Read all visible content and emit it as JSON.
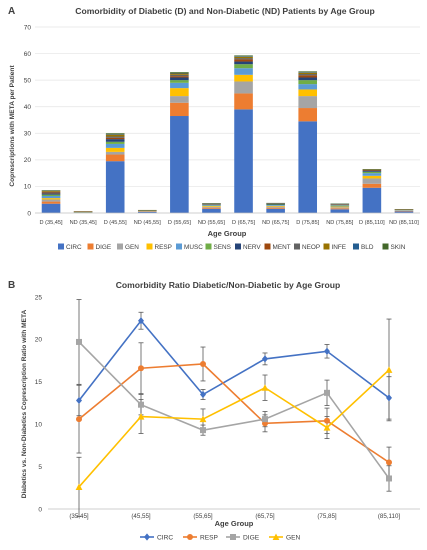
{
  "panel_a": {
    "letter": "A",
    "chart_data": {
      "type": "bar",
      "stacked": true,
      "title": "Comorbidity of Diabetic (D) and Non-Diabetic (ND) Patients by Age Group",
      "xlabel": "Age Group",
      "ylabel": "Coprescriptions with META per Patient",
      "ylim": [
        0,
        70
      ],
      "yticks": [
        "0",
        "10",
        "20",
        "30",
        "40",
        "50",
        "60",
        "70"
      ],
      "grid": true,
      "legend_position": "bottom",
      "categories": [
        "D (35,45]",
        "ND (35,45]",
        "D (45,55]",
        "ND (45,55]",
        "D (55,65]",
        "ND (55,65]",
        "D (65,75]",
        "ND (65,75]",
        "D (75,85]",
        "ND (75,85]",
        "D (85,110]",
        "ND (85,110]"
      ],
      "series": [
        {
          "name": "CIRC",
          "color": "#4472c4",
          "values": [
            3.5,
            0.2,
            19.5,
            0.5,
            36.5,
            1.6,
            39,
            1.6,
            34.5,
            1.4,
            9.5,
            0.6
          ]
        },
        {
          "name": "DIGE",
          "color": "#ed7d31",
          "values": [
            0.8,
            0.05,
            2.5,
            0.1,
            5,
            0.4,
            6,
            0.4,
            5,
            0.35,
            1.5,
            0.15
          ]
        },
        {
          "name": "GEN",
          "color": "#a5a5a5",
          "values": [
            0.8,
            0.05,
            1,
            0.1,
            2.5,
            0.3,
            4.5,
            0.4,
            4.5,
            0.4,
            2,
            0.15
          ]
        },
        {
          "name": "RESP",
          "color": "#ffc000",
          "values": [
            0.5,
            0.05,
            1.5,
            0.1,
            3,
            0.3,
            2.5,
            0.3,
            2.5,
            0.3,
            1,
            0.1
          ]
        },
        {
          "name": "MUSC",
          "color": "#5b9bd5",
          "values": [
            0.8,
            0.05,
            1.5,
            0.1,
            2,
            0.3,
            2.5,
            0.3,
            2,
            0.3,
            1,
            0.15
          ]
        },
        {
          "name": "SENS",
          "color": "#70ad47",
          "values": [
            0.5,
            0.05,
            0.8,
            0.05,
            1,
            0.2,
            1.5,
            0.2,
            1.5,
            0.2,
            0.5,
            0.1
          ]
        },
        {
          "name": "NERV",
          "color": "#264478",
          "values": [
            0.5,
            0.05,
            1,
            0.05,
            1,
            0.2,
            1,
            0.2,
            1,
            0.2,
            0.3,
            0.1
          ]
        },
        {
          "name": "MENT",
          "color": "#9e480e",
          "values": [
            0.3,
            0.05,
            0.5,
            0.05,
            0.5,
            0.1,
            0.8,
            0.1,
            0.8,
            0.1,
            0.2,
            0.05
          ]
        },
        {
          "name": "NEOP",
          "color": "#636363",
          "values": [
            0.3,
            0.05,
            0.5,
            0.05,
            0.5,
            0.1,
            0.5,
            0.1,
            0.5,
            0.1,
            0.2,
            0.05
          ]
        },
        {
          "name": "INFE",
          "color": "#997300",
          "values": [
            0.4,
            0.05,
            0.7,
            0.05,
            0.5,
            0.1,
            0.5,
            0.1,
            0.5,
            0.1,
            0.2,
            0.05
          ]
        },
        {
          "name": "BLD",
          "color": "#255e91",
          "values": [
            0.1,
            0.0,
            0.2,
            0.0,
            0.2,
            0.05,
            0.2,
            0.05,
            0.2,
            0.05,
            0.05,
            0.0
          ]
        },
        {
          "name": "SKIN",
          "color": "#43682b",
          "values": [
            0.1,
            0.0,
            0.3,
            0.0,
            0.3,
            0.05,
            0.3,
            0.05,
            0.3,
            0.05,
            0.05,
            0.0
          ]
        }
      ]
    }
  },
  "panel_b": {
    "letter": "B",
    "chart_data": {
      "type": "line",
      "title": "Comorbidity Ratio Diabetic/Non-Diabetic by Age Group",
      "xlabel": "Age Group",
      "ylabel": "Diabetics vs. Non-Diabetics Coprescription Ratio with META",
      "ylim": [
        0,
        25
      ],
      "yticks": [
        "0",
        "5",
        "10",
        "15",
        "20",
        "25"
      ],
      "grid": false,
      "legend_position": "bottom",
      "categories": [
        "(35,45]",
        "(45,55]",
        "(55,65]",
        "(65,75]",
        "(75,85]",
        "(85,110]"
      ],
      "series": [
        {
          "name": "CIRC",
          "color": "#4472c4",
          "marker": "diamond",
          "values": [
            12.8,
            22.2,
            13.5,
            17.7,
            18.6,
            13.1
          ],
          "error": [
            1.8,
            1.0,
            0.6,
            0.7,
            0.8,
            2.5
          ]
        },
        {
          "name": "RESP",
          "color": "#ed7d31",
          "marker": "circle",
          "values": [
            10.6,
            16.6,
            17.1,
            10.1,
            10.4,
            5.5
          ],
          "error": [
            4.0,
            3.0,
            2.0,
            1.0,
            1.5,
            1.8
          ]
        },
        {
          "name": "DIGE",
          "color": "#a5a5a5",
          "marker": "square",
          "values": [
            19.7,
            12.3,
            9.3,
            10.6,
            13.7,
            3.6
          ],
          "error": [
            5.0,
            1.2,
            0.6,
            0.9,
            1.5,
            1.5
          ]
        },
        {
          "name": "GEN",
          "color": "#ffc000",
          "marker": "triangle",
          "values": [
            2.6,
            10.9,
            10.6,
            14.3,
            9.6,
            16.4
          ],
          "error": [
            3.5,
            2.0,
            1.2,
            1.5,
            1.3,
            6.0
          ]
        }
      ]
    }
  }
}
